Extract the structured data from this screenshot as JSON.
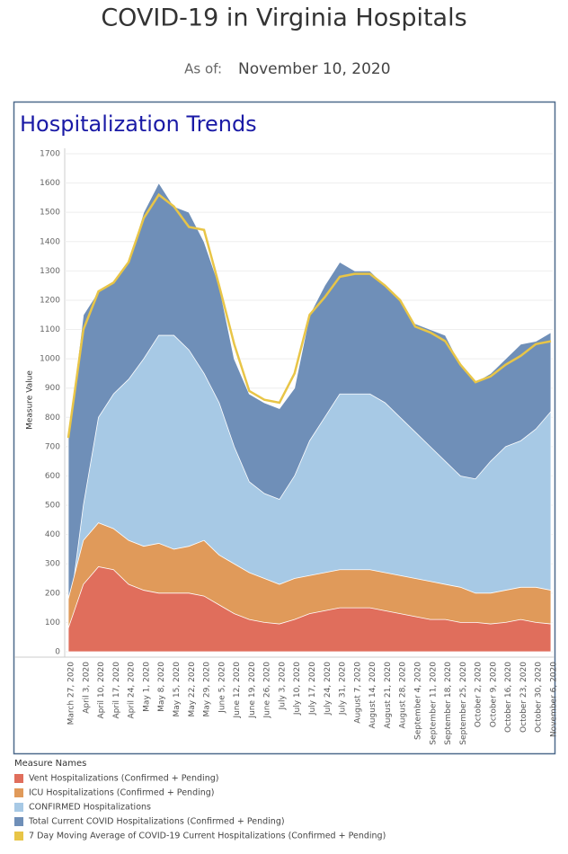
{
  "chart_data": {
    "type": "area",
    "title": "COVID-19 in Virginia Hospitals",
    "as_of_label": "As of:",
    "subtitle": "November 10, 2020",
    "panel_title": "Hospitalization Trends",
    "y_label": "Measure Value",
    "legend_title": "Measure Names",
    "categories": [
      "March 27, 2020",
      "April 3, 2020",
      "April 10, 2020",
      "April 17, 2020",
      "April 24, 2020",
      "May 1, 2020",
      "May 8, 2020",
      "May 15, 2020",
      "May 22, 2020",
      "May 29, 2020",
      "June 5, 2020",
      "June 12, 2020",
      "June 19, 2020",
      "June 26, 2020",
      "July 3, 2020",
      "July 10, 2020",
      "July 17, 2020",
      "July 24, 2020",
      "July 31, 2020",
      "August 7, 2020",
      "August 14, 2020",
      "August 21, 2020",
      "August 28, 2020",
      "September 4, 2020",
      "September 11, 2020",
      "September 18, 2020",
      "September 25, 2020",
      "October 2, 2020",
      "October 9, 2020",
      "October 16, 2020",
      "October 23, 2020",
      "October 30, 2020",
      "November 6, 2020"
    ],
    "series": [
      {
        "name": "Vent Hospitalizations (Confirmed + Pending)",
        "color": "#e06e5c",
        "values": [
          80,
          230,
          290,
          280,
          230,
          210,
          200,
          200,
          200,
          190,
          160,
          130,
          110,
          100,
          95,
          110,
          130,
          140,
          150,
          150,
          150,
          140,
          130,
          120,
          110,
          110,
          100,
          100,
          95,
          100,
          110,
          100,
          95
        ]
      },
      {
        "name": "ICU Hospitalizations (Confirmed + Pending)",
        "color": "#e09a5a",
        "values": [
          180,
          380,
          440,
          420,
          380,
          360,
          370,
          350,
          360,
          380,
          330,
          300,
          270,
          250,
          230,
          250,
          260,
          270,
          280,
          280,
          280,
          270,
          260,
          250,
          240,
          230,
          220,
          200,
          200,
          210,
          220,
          220,
          210
        ]
      },
      {
        "name": "CONFIRMED Hospitalizations",
        "color": "#a7c9e5",
        "values": [
          100,
          500,
          800,
          880,
          930,
          1000,
          1080,
          1080,
          1030,
          950,
          850,
          700,
          580,
          540,
          520,
          600,
          720,
          800,
          880,
          880,
          880,
          850,
          800,
          750,
          700,
          650,
          600,
          590,
          650,
          700,
          720,
          760,
          820
        ]
      },
      {
        "name": "Total Current COVID Hospitalizations (Confirmed + Pending)",
        "color": "#6f8fb8",
        "values": [
          730,
          1150,
          1230,
          1260,
          1330,
          1500,
          1600,
          1520,
          1500,
          1400,
          1250,
          1000,
          880,
          850,
          830,
          900,
          1150,
          1250,
          1330,
          1300,
          1300,
          1250,
          1200,
          1120,
          1100,
          1080,
          980,
          920,
          950,
          1000,
          1050,
          1060,
          1090
        ]
      },
      {
        "name": "7 Day Moving Average of COVID-19 Current Hospitalizations (Confirmed + Pending)",
        "color": "#e8c547",
        "line": true,
        "values": [
          730,
          1100,
          1230,
          1260,
          1330,
          1480,
          1560,
          1520,
          1450,
          1440,
          1250,
          1050,
          890,
          860,
          850,
          950,
          1150,
          1210,
          1280,
          1290,
          1290,
          1250,
          1200,
          1110,
          1090,
          1060,
          980,
          920,
          940,
          980,
          1010,
          1050,
          1060
        ]
      }
    ],
    "draw_order": [
      3,
      2,
      1,
      0,
      4
    ],
    "ylim": [
      0,
      1700
    ],
    "yticks": [
      0,
      100,
      200,
      300,
      400,
      500,
      600,
      700,
      800,
      900,
      1000,
      1100,
      1200,
      1300,
      1400,
      1500,
      1600,
      1700
    ],
    "grid": true
  }
}
